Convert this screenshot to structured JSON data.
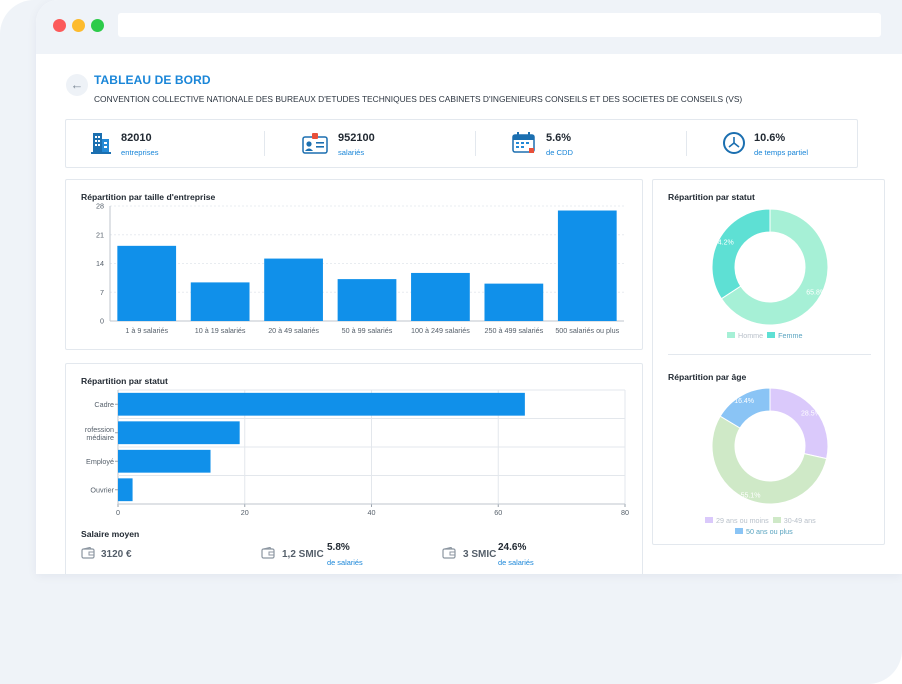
{
  "header": {
    "back_icon": "arrow-left-icon",
    "title": "TABLEAU DE BORD",
    "subtitle": "CONVENTION COLLECTIVE NATIONALE DES BUREAUX D'ETUDES TECHNIQUES DES CABINETS D'INGENIEURS CONSEILS ET DES SOCIETES DE CONSEILS (VS)"
  },
  "stats": [
    {
      "icon": "building-icon",
      "value": "82010",
      "label": "entreprises"
    },
    {
      "icon": "id-card-icon",
      "value": "952100",
      "label": "salariés"
    },
    {
      "icon": "calendar-icon",
      "value": "5.6%",
      "label": "de CDD"
    },
    {
      "icon": "clock-icon",
      "value": "10.6%",
      "label": "de temps partiel"
    }
  ],
  "colors": {
    "accent": "#1a86d8",
    "bar": "#1090ea",
    "homme": "#a6f0d6",
    "femme": "#5ee0d4",
    "age1": "#dac9fb",
    "age2": "#cfe9c7",
    "age3": "#8ac4f5"
  },
  "charts": {
    "size_title": "Répartition par taille d'entreprise",
    "statut_title": "Répartition par statut",
    "pie_statut_title": "Répartition par statut",
    "age_title": "Répartition par âge"
  },
  "legend_statut": {
    "homme": "Homme",
    "femme": "Femme"
  },
  "legend_age": {
    "a": "29 ans ou moins",
    "b": "30-49 ans",
    "c": "50 ans ou plus"
  },
  "salary": {
    "title": "Salaire moyen",
    "wallet_icon": "wallet-icon",
    "value": "3120 €",
    "smic1": "1,2 SMIC",
    "smic1_pct": "5.8%",
    "smic1_label": "de salariés",
    "smic2": "3 SMIC",
    "smic2_pct": "24.6%",
    "smic2_label": "de salariés"
  },
  "chart_data": [
    {
      "type": "bar",
      "title": "Répartition par taille d'entreprise",
      "categories": [
        "1 à 9 salariés",
        "10 à 19 salariés",
        "20 à 49 salariés",
        "50 à 99 salariés",
        "100 à 249 salariés",
        "250 à 499 salariés",
        "500 salariés ou plus"
      ],
      "values": [
        18.3,
        9.4,
        15.2,
        10.2,
        11.7,
        9.1,
        26.9
      ],
      "yticks": [
        0,
        7,
        14,
        21,
        28
      ],
      "ylim": [
        0,
        28
      ]
    },
    {
      "type": "bar",
      "orientation": "horizontal",
      "title": "Répartition par statut",
      "categories": [
        "Cadre",
        "Profession intermédiaire",
        "Employé",
        "Ouvrier"
      ],
      "tick_labels": [
        "Cadre",
        "rofession",
        "médiaire",
        "Employé",
        "Ouvrier"
      ],
      "values": [
        64.2,
        19.2,
        14.6,
        2.3
      ],
      "xticks": [
        0,
        20,
        40,
        60,
        80
      ],
      "xlim": [
        0,
        80
      ]
    },
    {
      "type": "pie",
      "title": "Répartition par statut",
      "categories": [
        "Homme",
        "Femme"
      ],
      "values": [
        65.8,
        34.2
      ],
      "labels": [
        "65.8%",
        "34.2%"
      ]
    },
    {
      "type": "pie",
      "title": "Répartition par âge",
      "categories": [
        "29 ans ou moins",
        "30-49 ans",
        "50 ans ou plus"
      ],
      "values": [
        28.5,
        55.1,
        16.4
      ],
      "labels": [
        "28.5%",
        "55.1%",
        "16.4%"
      ]
    }
  ]
}
